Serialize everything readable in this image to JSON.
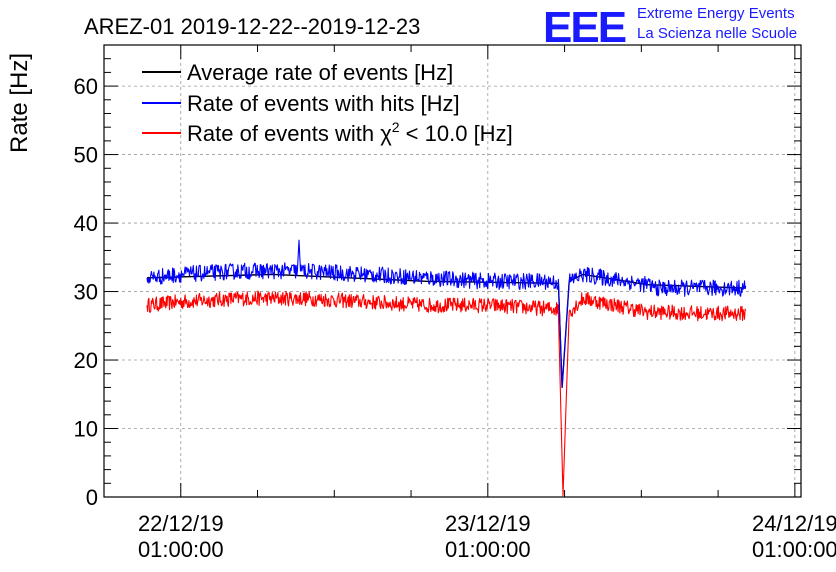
{
  "chart_data": {
    "type": "line",
    "title": "AREZ-01 2019-12-22--2019-12-23",
    "logo": {
      "text": "EEE",
      "line1": "Extreme Energy Events",
      "line2": "La Scienza nelle Scuole"
    },
    "ylabel": "Rate [Hz]",
    "ylim": [
      0,
      66
    ],
    "xlim": [
      -0.25,
      2.02
    ],
    "grid": true,
    "legend_position": "top-left",
    "x_ticks": [
      {
        "value": 0,
        "line1": "22/12/19",
        "line2": "01:00:00"
      },
      {
        "value": 1,
        "line1": "23/12/19",
        "line2": "01:00:00"
      },
      {
        "value": 2,
        "line1": "24/12/19",
        "line2": "01:00:00"
      }
    ],
    "y_ticks": [
      0,
      10,
      20,
      30,
      40,
      50,
      60
    ],
    "x_unit": "days since 22/12/19 01:00:00",
    "series": [
      {
        "name": "Average rate of events [Hz]",
        "color": "#000000",
        "x": [
          -0.11,
          0.3,
          0.8,
          1.23,
          1.242,
          1.265,
          1.31,
          1.52,
          1.84
        ],
        "y": [
          32.0,
          32.5,
          31.5,
          31.2,
          16.0,
          31.5,
          32.5,
          31.0,
          30.5
        ]
      },
      {
        "name": "Rate of events with hits [Hz]",
        "color": "#0000ff",
        "x": [
          -0.11,
          0.0,
          0.2,
          0.3,
          0.38,
          0.385,
          0.39,
          0.6,
          0.8,
          1.0,
          1.2,
          1.23,
          1.242,
          1.265,
          1.31,
          1.45,
          1.52,
          1.55,
          1.7,
          1.84
        ],
        "y": [
          32.0,
          32.5,
          33.0,
          33.0,
          33.0,
          37.5,
          33.0,
          32.5,
          32.0,
          31.5,
          31.5,
          31.3,
          16.0,
          31.5,
          32.5,
          31.5,
          31.0,
          30.5,
          30.5,
          30.5
        ],
        "noise": 1.2
      },
      {
        "name": "Rate of events with χ² < 10.0 [Hz]",
        "legend_main": "Rate of events with χ",
        "legend_sup": "2",
        "legend_tail": " < 10.0 [Hz]",
        "color": "#ff0000",
        "x": [
          -0.11,
          0.0,
          0.2,
          0.4,
          0.6,
          0.8,
          1.0,
          1.2,
          1.23,
          1.245,
          1.265,
          1.31,
          1.52,
          1.55,
          1.7,
          1.84
        ],
        "y": [
          28.0,
          28.5,
          29.0,
          29.0,
          28.5,
          28.0,
          28.0,
          27.5,
          27.5,
          0.2,
          27.0,
          29.0,
          27.0,
          27.0,
          26.8,
          26.8
        ],
        "noise": 1.1
      }
    ]
  }
}
